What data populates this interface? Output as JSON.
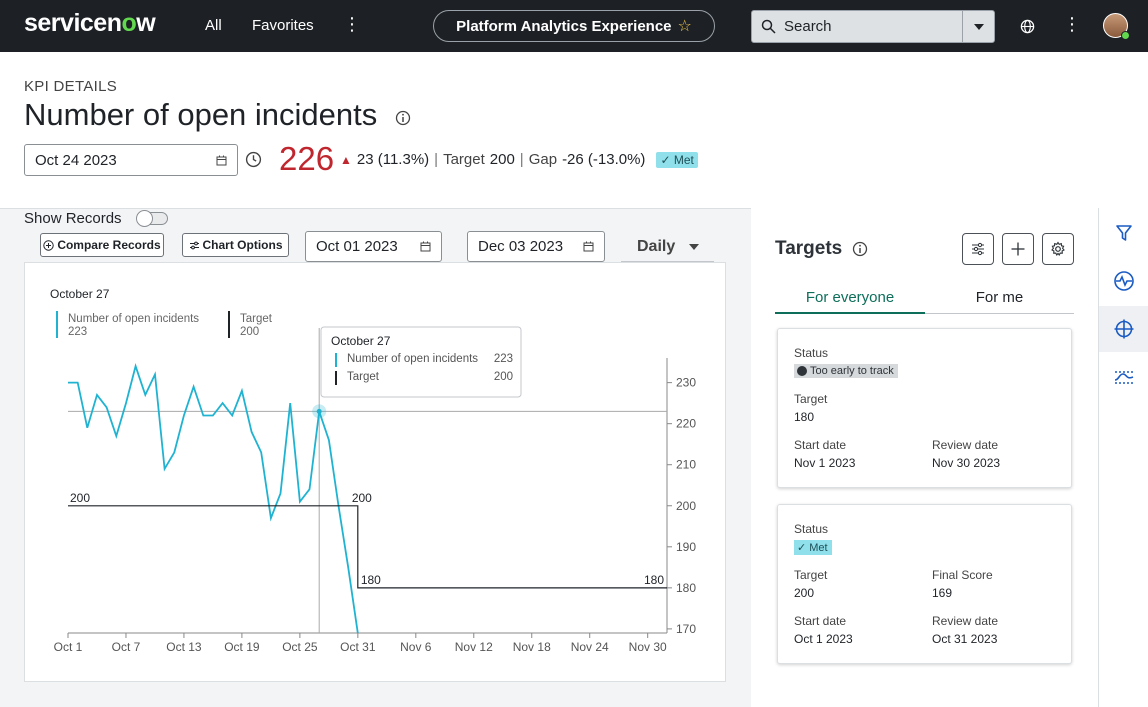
{
  "nav": {
    "logo_text": "servicen",
    "logo_o": "o",
    "logo_end": "w",
    "all": "All",
    "favorites": "Favorites",
    "more": "⋮",
    "workspace": "Platform Analytics Experience",
    "star": "☆",
    "search_placeholder": "Search",
    "more2": "⋮"
  },
  "header": {
    "label": "KPI DETAILS",
    "title": "Number of open incidents",
    "date": "Oct 24 2023",
    "value": "226",
    "arrow": "▲",
    "change": "23 (11.3%)",
    "sep1": "|",
    "target_label": "Target",
    "target_value": "200",
    "sep2": "|",
    "gap_label": "Gap",
    "gap_value": "-26 (-13.0%)",
    "status": "✓ Met"
  },
  "controls": {
    "show_records": "Show Records",
    "compare": "Compare Records",
    "chart_options": "Chart Options",
    "start_date": "Oct 01 2023",
    "end_date": "Dec 03 2023",
    "period": "Daily"
  },
  "chart_data": {
    "type": "line",
    "legend_date": "October 27",
    "legend": [
      {
        "name": "Number of open incidents",
        "value": "223",
        "color": "#1fb3d1"
      },
      {
        "name": "Target",
        "value": "200",
        "color": "#1f2328"
      }
    ],
    "tooltip": {
      "title": "October 27",
      "rows": [
        {
          "name": "Number of open incidents",
          "value": "223"
        },
        {
          "name": "Target",
          "value": "200"
        }
      ]
    },
    "x_ticks": [
      "Oct 1",
      "Oct 7",
      "Oct 13",
      "Oct 19",
      "Oct 25",
      "Oct 31",
      "Nov 6",
      "Nov 12",
      "Nov 18",
      "Nov 24",
      "Nov 30"
    ],
    "y_ticks": [
      170,
      180,
      190,
      200,
      210,
      220,
      230
    ],
    "ylim": [
      169,
      236
    ],
    "xlim_days": [
      1,
      63
    ],
    "series": [
      {
        "name": "Number of open incidents",
        "color": "#1fb3d1",
        "x": [
          1,
          2,
          3,
          4,
          5,
          6,
          7,
          8,
          9,
          10,
          11,
          12,
          13,
          14,
          15,
          16,
          17,
          18,
          19,
          20,
          21,
          22,
          23,
          24,
          25,
          26,
          27,
          28,
          29,
          30,
          31
        ],
        "values": [
          230,
          230,
          219,
          227,
          224,
          217,
          225,
          234,
          227,
          232,
          209,
          213,
          222,
          229,
          222,
          222,
          225,
          222,
          228,
          218,
          213,
          197,
          203,
          225,
          201,
          204,
          223,
          216,
          200,
          185,
          169
        ]
      },
      {
        "name": "Target",
        "color": "#1f2328",
        "x": [
          1,
          31,
          31,
          63
        ],
        "values": [
          200,
          200,
          180,
          180
        ]
      }
    ],
    "data_labels": [
      {
        "x": 1,
        "y": 200,
        "text": "200"
      },
      {
        "x": 31,
        "y": 200,
        "text": "200"
      },
      {
        "x": 31,
        "y": 180,
        "text": "180"
      },
      {
        "x": 63,
        "y": 180,
        "text": "180"
      }
    ],
    "crosshair": {
      "x": 27,
      "y": 223
    }
  },
  "targets": {
    "title": "Targets",
    "tab_everyone": "For everyone",
    "tab_me": "For me",
    "cards": [
      {
        "status_label": "Status",
        "status": "Too early to track",
        "target_label": "Target",
        "target": "180",
        "start_label": "Start date",
        "start": "Nov 1 2023",
        "review_label": "Review date",
        "review": "Nov 30 2023"
      },
      {
        "status_label": "Status",
        "status": "✓ Met",
        "target_label": "Target",
        "target": "200",
        "final_label": "Final Score",
        "final": "169",
        "start_label": "Start date",
        "start": "Oct 1 2023",
        "review_label": "Review date",
        "review": "Oct 31 2023"
      }
    ]
  }
}
